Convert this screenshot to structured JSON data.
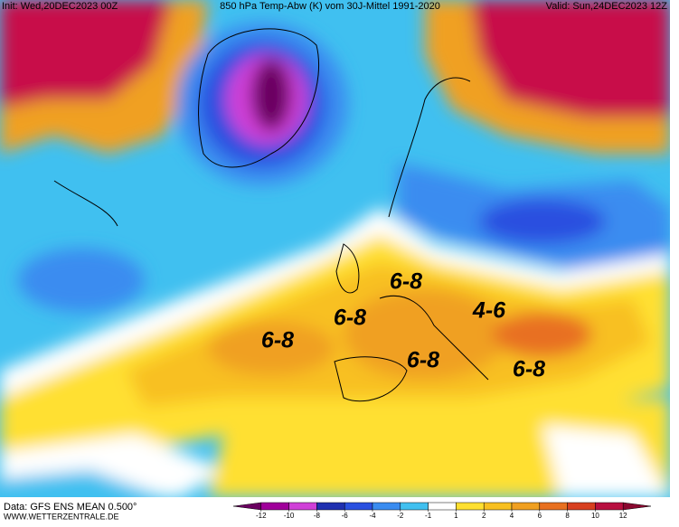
{
  "header": {
    "init": "Init: Wed,20DEC2023 00Z",
    "title": "850 hPa Temp-Abw (K) vom 30J-Mittel 1991-2020",
    "valid": "Valid: Sun,24DEC2023 12Z"
  },
  "annotations": [
    "6-8",
    "6-8",
    "6-8",
    "4-6",
    "6-8",
    "6-8"
  ],
  "footer": {
    "source": "Data: GFS ENS MEAN 0.500°",
    "website": "WWW.WETTERZENTRALE.DE"
  },
  "colorbar": {
    "ticks": [
      -12,
      -10,
      -8,
      -6,
      -4,
      -2,
      -1,
      1,
      2,
      4,
      6,
      8,
      10,
      12
    ],
    "colors": [
      "#6a0060",
      "#a0009a",
      "#d040d8",
      "#2030b0",
      "#2a50e0",
      "#3a8cf0",
      "#40c0f0",
      "#ffffff",
      "#ffe030",
      "#f8c020",
      "#f0a020",
      "#e87020",
      "#d84020",
      "#b81040",
      "#8a0830"
    ]
  }
}
